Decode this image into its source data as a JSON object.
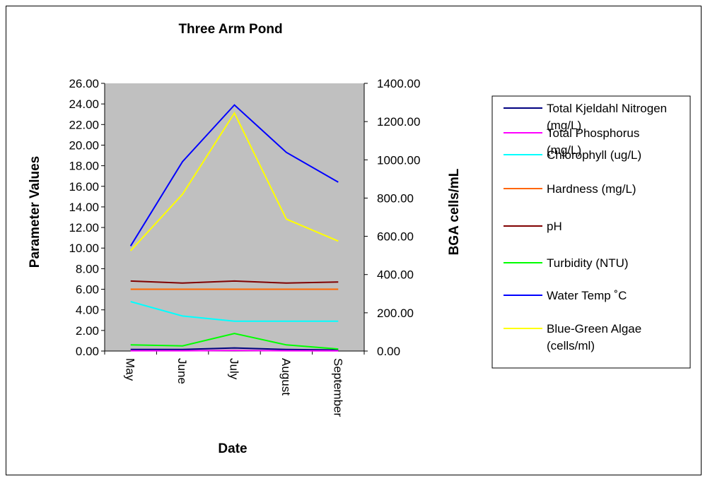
{
  "chart_data": {
    "type": "line",
    "title": "Three Arm Pond",
    "xlabel": "Date",
    "ylabel": "Parameter Values",
    "y2label": "BGA cells/mL",
    "categories": [
      "May",
      "June",
      "July",
      "August",
      "September"
    ],
    "ylim": [
      0,
      26
    ],
    "y2lim": [
      0,
      1400
    ],
    "y_ticks": [
      "0.00",
      "2.00",
      "4.00",
      "6.00",
      "8.00",
      "10.00",
      "12.00",
      "14.00",
      "16.00",
      "18.00",
      "20.00",
      "22.00",
      "24.00",
      "26.00"
    ],
    "y2_ticks": [
      "0.00",
      "200.00",
      "400.00",
      "600.00",
      "800.00",
      "1000.00",
      "1200.00",
      "1400.00"
    ],
    "plot_background": "#c0c0c0",
    "grid": false,
    "legend_position": "right",
    "series": [
      {
        "name": "Total Kjeldahl Nitrogen (mg/L)",
        "legend_lines": [
          "Total Kjeldahl Nitrogen",
          "(mg/L)"
        ],
        "color": "#000080",
        "axis": "left",
        "values": [
          0.15,
          0.15,
          0.3,
          0.15,
          0.1
        ]
      },
      {
        "name": "Total Phosphorus (mg/L)",
        "legend_lines": [
          "Total Phosphorus",
          "(mg/L)"
        ],
        "color": "#ff00ff",
        "axis": "left",
        "values": [
          0.03,
          0.03,
          0.05,
          0.03,
          0.02
        ]
      },
      {
        "name": "Chlorophyll (ug/L)",
        "legend_lines": [
          "Chlorophyll (ug/L)"
        ],
        "color": "#00ffff",
        "axis": "left",
        "values": [
          4.8,
          3.4,
          2.9,
          2.9,
          2.9
        ]
      },
      {
        "name": "Hardness (mg/L)",
        "legend_lines": [
          "Hardness (mg/L)"
        ],
        "color": "#ff6600",
        "axis": "left",
        "values": [
          6.0,
          6.0,
          6.0,
          6.0,
          6.0
        ]
      },
      {
        "name": "pH",
        "legend_lines": [
          "pH"
        ],
        "color": "#800000",
        "axis": "left",
        "values": [
          6.8,
          6.6,
          6.8,
          6.6,
          6.7
        ]
      },
      {
        "name": "Turbidity (NTU)",
        "legend_lines": [
          "Turbidity (NTU)"
        ],
        "color": "#00ff00",
        "axis": "left",
        "values": [
          0.6,
          0.5,
          1.7,
          0.6,
          0.2
        ]
      },
      {
        "name": "Water Temp ˚C",
        "legend_lines": [
          "Water Temp ˚C"
        ],
        "color": "#0000ff",
        "axis": "left",
        "values": [
          10.2,
          18.4,
          23.9,
          19.3,
          16.4
        ]
      },
      {
        "name": "Blue-Green Algae (cells/ml)",
        "legend_lines": [
          "Blue-Green Algae",
          "(cells/ml)"
        ],
        "color": "#ffff00",
        "axis": "right",
        "values": [
          525,
          820,
          1245,
          690,
          575
        ]
      }
    ]
  }
}
